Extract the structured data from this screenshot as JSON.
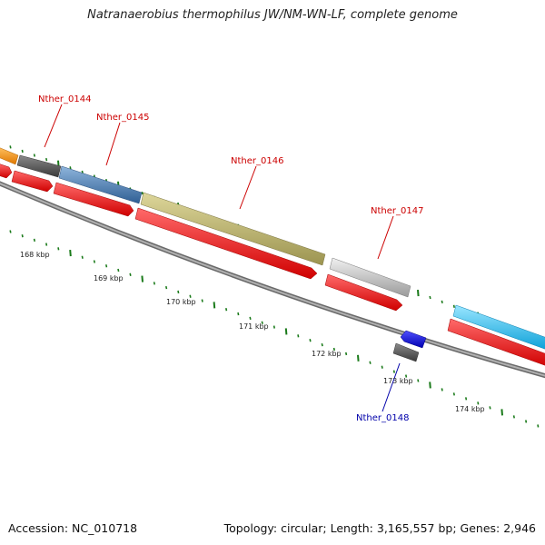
{
  "title": "Natranaerobius thermophilus JW/NM-WN-LF, complete genome",
  "footer": {
    "accession": "Accession: NC_010718",
    "topology": "Topology: circular; Length: 3,165,557 bp; Genes: 2,946"
  },
  "colors": {
    "gene_label_forward": "#cc0000",
    "gene_label_reverse": "#0000aa",
    "cds_arrow": "#ff0000",
    "backbone": "#808080",
    "tick": "#1a7a1a"
  },
  "gene_labels": [
    {
      "text": "Nther_0144",
      "strand": "forward"
    },
    {
      "text": "Nther_0145",
      "strand": "forward"
    },
    {
      "text": "Nther_0146",
      "strand": "forward"
    },
    {
      "text": "Nther_0147",
      "strand": "forward"
    },
    {
      "text": "Nther_0148",
      "strand": "reverse"
    }
  ],
  "scale_labels": [
    "168 kbp",
    "169 kbp",
    "170 kbp",
    "171 kbp",
    "172 kbp",
    "173 kbp",
    "174 kbp"
  ]
}
